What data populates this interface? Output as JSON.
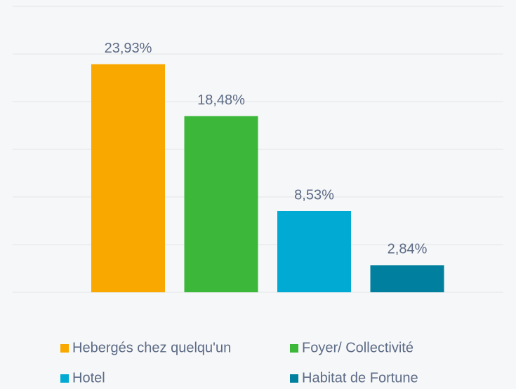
{
  "chart_data": {
    "type": "bar",
    "series": [
      {
        "name": "Hebergés chez quelqu'un",
        "color": "#f9a800",
        "values": [
          23.93
        ],
        "value_labels": [
          "23,93%"
        ]
      },
      {
        "name": "Foyer/ Collectivité",
        "color": "#3cb73a",
        "values": [
          18.48
        ],
        "value_labels": [
          "18,48%"
        ]
      },
      {
        "name": "Hotel",
        "color": "#00aad2",
        "values": [
          8.53
        ],
        "value_labels": [
          "8,53%"
        ]
      },
      {
        "name": "Habitat de Fortune",
        "color": "#00809e",
        "values": [
          2.84
        ],
        "value_labels": [
          "2,84%"
        ]
      }
    ],
    "ylim": [
      0,
      30
    ],
    "yticks": [
      0,
      5,
      10,
      15,
      20,
      25,
      30
    ],
    "grid": true,
    "legend": "bottom"
  }
}
